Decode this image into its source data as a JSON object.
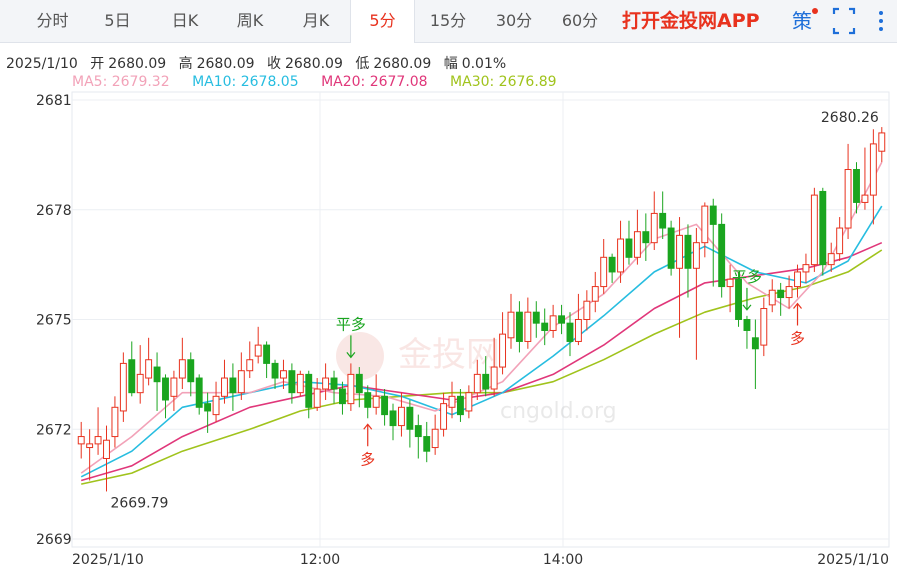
{
  "tabs": [
    "分时",
    "5日",
    "日K",
    "周K",
    "月K",
    "5分",
    "15分",
    "30分",
    "60分"
  ],
  "active_tab": "5分",
  "promo": "打开金投网APP",
  "icons": {
    "strategy": "策",
    "fullscreen": "fullscreen-icon",
    "more": "more-vertical-icon"
  },
  "info": {
    "date": "2025/1/10",
    "open_label": "开",
    "open": "2680.09",
    "high_label": "高",
    "high": "2680.09",
    "close_label": "收",
    "close": "2680.09",
    "low_label": "低",
    "low": "2680.09",
    "amp_label": "幅",
    "amp": "0.01%"
  },
  "ma": {
    "ma5": "MA5: 2679.32",
    "ma10": "MA10: 2678.05",
    "ma20": "MA20: 2677.08",
    "ma30": "MA30: 2676.89"
  },
  "colors": {
    "up": "#e8321e",
    "down": "#1aa51f",
    "ma5": "#f2a2b8",
    "ma10": "#27bde0",
    "ma20": "#e0377a",
    "ma30": "#a0c31c"
  },
  "watermark": {
    "brand": "金投网",
    "url": "cngold.org"
  },
  "chart_data": {
    "type": "candlestick",
    "ylim": [
      2669,
      2681
    ],
    "y_ticks": [
      2681,
      2678,
      2675,
      2672,
      2669
    ],
    "x_tick_labels": [
      "2025/1/10",
      "12:00",
      "14:00",
      "2025/1/10"
    ],
    "max_label": "2680.26",
    "min_label": "2669.79",
    "signals": [
      {
        "label": "平多",
        "direction": "down",
        "bar": 32
      },
      {
        "label": "多",
        "direction": "up",
        "bar": 34
      },
      {
        "label": "平多",
        "direction": "down",
        "bar": 79
      },
      {
        "label": "多",
        "direction": "up",
        "bar": 85
      }
    ],
    "candles": [
      [
        2671.6,
        2671.8,
        2671.2,
        2672.2
      ],
      [
        2671.5,
        2671.6,
        2670.6,
        2672.0
      ],
      [
        2671.6,
        2671.8,
        2671.3,
        2672.6
      ],
      [
        2671.2,
        2671.7,
        2670.3,
        2672.1
      ],
      [
        2671.8,
        2672.6,
        2671.5,
        2672.9
      ],
      [
        2672.5,
        2673.8,
        2672.2,
        2674.1
      ],
      [
        2673.9,
        2673.0,
        2672.9,
        2674.4
      ],
      [
        2673.0,
        2673.5,
        2672.7,
        2674.3
      ],
      [
        2673.4,
        2673.9,
        2673.2,
        2674.5
      ],
      [
        2673.7,
        2673.3,
        2672.5,
        2674.1
      ],
      [
        2673.4,
        2672.8,
        2672.3,
        2673.5
      ],
      [
        2672.9,
        2673.4,
        2672.5,
        2673.6
      ],
      [
        2673.4,
        2673.9,
        2673.1,
        2674.5
      ],
      [
        2673.9,
        2673.3,
        2672.9,
        2674.1
      ],
      [
        2673.4,
        2672.6,
        2672.4,
        2673.5
      ],
      [
        2672.7,
        2672.5,
        2671.9,
        2673.0
      ],
      [
        2672.4,
        2672.9,
        2672.2,
        2673.3
      ],
      [
        2672.9,
        2673.4,
        2672.7,
        2673.9
      ],
      [
        2673.4,
        2673.0,
        2672.5,
        2673.8
      ],
      [
        2673.0,
        2673.6,
        2672.8,
        2674.1
      ],
      [
        2673.6,
        2673.9,
        2673.4,
        2674.4
      ],
      [
        2674.0,
        2674.3,
        2673.8,
        2674.8
      ],
      [
        2674.3,
        2673.8,
        2673.4,
        2674.4
      ],
      [
        2673.8,
        2673.4,
        2673.1,
        2673.9
      ],
      [
        2673.4,
        2673.6,
        2673.1,
        2673.9
      ],
      [
        2673.6,
        2673.0,
        2672.7,
        2673.8
      ],
      [
        2673.0,
        2673.5,
        2672.9,
        2673.6
      ],
      [
        2673.5,
        2672.6,
        2672.3,
        2673.6
      ],
      [
        2672.6,
        2673.1,
        2672.5,
        2673.4
      ],
      [
        2673.1,
        2673.4,
        2672.8,
        2673.8
      ],
      [
        2673.4,
        2673.1,
        2672.7,
        2673.6
      ],
      [
        2673.1,
        2672.7,
        2672.4,
        2673.3
      ],
      [
        2672.7,
        2673.5,
        2672.5,
        2673.8
      ],
      [
        2673.5,
        2673.0,
        2672.6,
        2673.7
      ],
      [
        2673.0,
        2672.6,
        2672.3,
        2673.2
      ],
      [
        2672.6,
        2672.9,
        2672.4,
        2673.5
      ],
      [
        2672.9,
        2672.4,
        2672.1,
        2673.1
      ],
      [
        2672.5,
        2672.1,
        2671.7,
        2672.7
      ],
      [
        2672.1,
        2672.6,
        2671.8,
        2673.0
      ],
      [
        2672.6,
        2672.0,
        2671.5,
        2672.8
      ],
      [
        2672.1,
        2671.8,
        2671.2,
        2672.4
      ],
      [
        2671.8,
        2671.4,
        2671.1,
        2672.2
      ],
      [
        2671.5,
        2672.0,
        2671.3,
        2672.4
      ],
      [
        2672.0,
        2672.7,
        2671.8,
        2673.0
      ],
      [
        2672.6,
        2672.9,
        2672.3,
        2673.3
      ],
      [
        2672.9,
        2672.4,
        2672.2,
        2673.1
      ],
      [
        2672.5,
        2673.0,
        2672.3,
        2673.2
      ],
      [
        2673.0,
        2673.5,
        2672.8,
        2673.9
      ],
      [
        2673.5,
        2673.1,
        2672.9,
        2674.0
      ],
      [
        2673.1,
        2673.7,
        2672.9,
        2674.5
      ],
      [
        2673.7,
        2674.6,
        2673.5,
        2675.2
      ],
      [
        2674.5,
        2675.2,
        2674.2,
        2675.7
      ],
      [
        2675.2,
        2674.4,
        2674.1,
        2675.5
      ],
      [
        2674.4,
        2675.2,
        2674.2,
        2675.6
      ],
      [
        2675.2,
        2674.9,
        2674.5,
        2675.5
      ],
      [
        2674.9,
        2674.7,
        2674.3,
        2675.3
      ],
      [
        2674.7,
        2675.1,
        2674.5,
        2675.4
      ],
      [
        2675.1,
        2674.9,
        2674.6,
        2675.4
      ],
      [
        2674.9,
        2674.4,
        2674.0,
        2675.2
      ],
      [
        2674.4,
        2675.0,
        2674.3,
        2675.7
      ],
      [
        2675.0,
        2675.5,
        2674.7,
        2675.8
      ],
      [
        2675.5,
        2675.9,
        2675.2,
        2676.3
      ],
      [
        2675.9,
        2676.7,
        2675.7,
        2677.2
      ],
      [
        2676.7,
        2676.3,
        2676.0,
        2676.8
      ],
      [
        2676.3,
        2677.2,
        2676.0,
        2677.7
      ],
      [
        2677.2,
        2676.7,
        2676.5,
        2677.7
      ],
      [
        2676.7,
        2677.4,
        2676.5,
        2678.0
      ],
      [
        2677.4,
        2677.1,
        2676.6,
        2677.9
      ],
      [
        2677.1,
        2677.9,
        2676.9,
        2678.5
      ],
      [
        2677.9,
        2677.5,
        2677.2,
        2678.5
      ],
      [
        2677.5,
        2676.4,
        2676.2,
        2677.7
      ],
      [
        2676.4,
        2677.3,
        2674.5,
        2677.8
      ],
      [
        2677.3,
        2676.4,
        2675.6,
        2677.6
      ],
      [
        2676.4,
        2677.1,
        2673.9,
        2677.5
      ],
      [
        2677.1,
        2678.1,
        2676.7,
        2678.2
      ],
      [
        2678.1,
        2677.6,
        2675.9,
        2678.3
      ],
      [
        2677.6,
        2675.9,
        2675.6,
        2677.9
      ],
      [
        2675.9,
        2676.1,
        2675.2,
        2676.5
      ],
      [
        2676.1,
        2675.0,
        2674.8,
        2676.3
      ],
      [
        2675.0,
        2674.7,
        2674.2,
        2675.1
      ],
      [
        2674.5,
        2674.2,
        2673.1,
        2675.0
      ],
      [
        2674.3,
        2675.3,
        2674.0,
        2675.6
      ],
      [
        2675.4,
        2675.8,
        2675.2,
        2676.1
      ],
      [
        2675.8,
        2675.6,
        2675.1,
        2676.0
      ],
      [
        2675.6,
        2675.9,
        2675.3,
        2676.2
      ],
      [
        2675.9,
        2676.3,
        2675.6,
        2676.5
      ],
      [
        2676.3,
        2676.5,
        2676.0,
        2676.8
      ],
      [
        2676.5,
        2678.4,
        2676.3,
        2678.6
      ],
      [
        2678.5,
        2676.5,
        2676.2,
        2678.6
      ],
      [
        2676.5,
        2676.8,
        2676.3,
        2677.1
      ],
      [
        2676.8,
        2677.5,
        2676.6,
        2677.8
      ],
      [
        2677.5,
        2679.1,
        2677.2,
        2679.8
      ],
      [
        2679.1,
        2678.2,
        2677.9,
        2679.3
      ],
      [
        2678.2,
        2678.4,
        2678.0,
        2679.7
      ],
      [
        2678.4,
        2679.8,
        2677.6,
        2680.2
      ],
      [
        2679.6,
        2680.1,
        2679.3,
        2680.26
      ]
    ],
    "ma5": [
      [
        0,
        2670.8
      ],
      [
        6,
        2671.8
      ],
      [
        12,
        2673.0
      ],
      [
        20,
        2673.0
      ],
      [
        24,
        2673.3
      ],
      [
        30,
        2673.0
      ],
      [
        36,
        2672.9
      ],
      [
        42,
        2672.5
      ],
      [
        50,
        2673.3
      ],
      [
        56,
        2674.8
      ],
      [
        62,
        2675.7
      ],
      [
        68,
        2677.2
      ],
      [
        73,
        2677.6
      ],
      [
        79,
        2676.0
      ],
      [
        84,
        2675.3
      ],
      [
        88,
        2676.3
      ],
      [
        92,
        2678.0
      ],
      [
        95,
        2679.3
      ]
    ],
    "ma10": [
      [
        0,
        2670.7
      ],
      [
        6,
        2671.4
      ],
      [
        12,
        2672.6
      ],
      [
        20,
        2673.0
      ],
      [
        26,
        2673.3
      ],
      [
        32,
        2673.2
      ],
      [
        38,
        2672.9
      ],
      [
        44,
        2672.4
      ],
      [
        50,
        2673.0
      ],
      [
        56,
        2674.0
      ],
      [
        62,
        2675.1
      ],
      [
        68,
        2676.3
      ],
      [
        74,
        2677.0
      ],
      [
        80,
        2676.3
      ],
      [
        86,
        2676.0
      ],
      [
        91,
        2676.6
      ],
      [
        95,
        2678.1
      ]
    ],
    "ma20": [
      [
        0,
        2670.6
      ],
      [
        6,
        2671.0
      ],
      [
        12,
        2671.8
      ],
      [
        20,
        2672.6
      ],
      [
        26,
        2672.9
      ],
      [
        32,
        2673.2
      ],
      [
        38,
        2673.0
      ],
      [
        44,
        2672.8
      ],
      [
        50,
        2673.0
      ],
      [
        56,
        2673.5
      ],
      [
        62,
        2674.3
      ],
      [
        68,
        2675.3
      ],
      [
        74,
        2676.0
      ],
      [
        80,
        2676.2
      ],
      [
        86,
        2676.4
      ],
      [
        91,
        2676.7
      ],
      [
        95,
        2677.1
      ]
    ],
    "ma30": [
      [
        0,
        2670.5
      ],
      [
        6,
        2670.8
      ],
      [
        12,
        2671.4
      ],
      [
        20,
        2672.0
      ],
      [
        26,
        2672.5
      ],
      [
        32,
        2672.8
      ],
      [
        38,
        2672.9
      ],
      [
        44,
        2673.0
      ],
      [
        50,
        2673.0
      ],
      [
        56,
        2673.3
      ],
      [
        62,
        2673.9
      ],
      [
        68,
        2674.6
      ],
      [
        74,
        2675.2
      ],
      [
        80,
        2675.6
      ],
      [
        86,
        2675.9
      ],
      [
        91,
        2676.3
      ],
      [
        95,
        2676.9
      ]
    ]
  }
}
